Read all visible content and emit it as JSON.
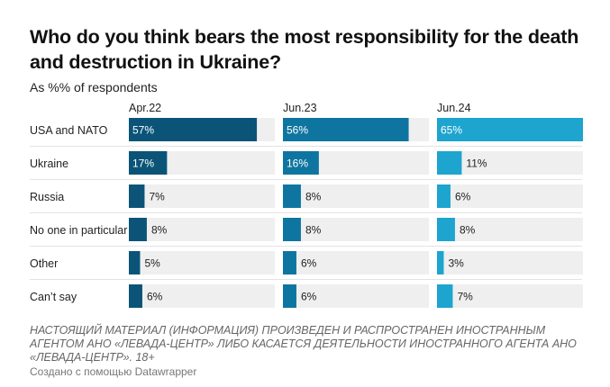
{
  "title": "Who do you think bears the most responsibility for the death and destruction in Ukraine?",
  "subtitle": "As %% of respondents",
  "note": "НАСТОЯЩИЙ МАТЕРИАЛ (ИНФОРМАЦИЯ) ПРОИЗВЕДЕН И РАСПРОСТРАНЕН ИНОСТРАННЫМ АГЕНТОМ АНО «ЛЕВАДА-ЦЕНТР» ЛИБО КАСАЕТСЯ ДЕЯТЕЛЬНОСТИ ИНОСТРАННОГО АГЕНТА АНО «ЛЕВАДА-ЦЕНТР». 18+",
  "credit": "Создано с помощью Datawrapper",
  "chart_data": {
    "type": "bar",
    "orientation": "horizontal",
    "layout": "small-multiples",
    "categories": [
      "USA and NATO",
      "Ukraine",
      "Russia",
      "No one in particular",
      "Other",
      "Can’t say"
    ],
    "series": [
      {
        "name": "Apr.22",
        "color": "#0b5478",
        "values": [
          57,
          17,
          7,
          8,
          5,
          6
        ],
        "labels": [
          "57%",
          "17%",
          "7%",
          "8%",
          "5%",
          "6%"
        ]
      },
      {
        "name": "Jun.23",
        "color": "#0e75a0",
        "values": [
          56,
          16,
          8,
          8,
          6,
          6
        ],
        "labels": [
          "56%",
          "16%",
          "8%",
          "8%",
          "6%",
          "6%"
        ]
      },
      {
        "name": "Jun.24",
        "color": "#1da4cf",
        "values": [
          65,
          11,
          6,
          8,
          3,
          7
        ],
        "labels": [
          "65%",
          "11%",
          "6%",
          "8%",
          "3%",
          "7%"
        ]
      }
    ],
    "xlim": [
      0,
      65
    ],
    "background_track_color": "#efefef",
    "grid": false,
    "legend": "none"
  }
}
